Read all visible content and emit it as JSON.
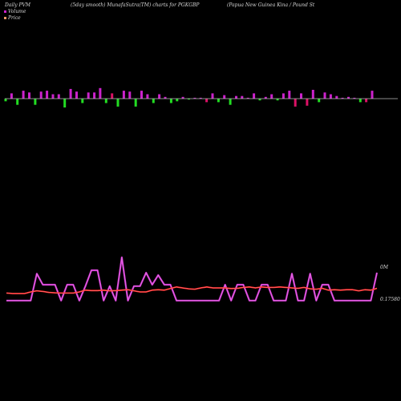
{
  "header": {
    "left": "Daily PVM",
    "middle": "(5day smooth) MunafaSutra(TM) charts for PGKGBP",
    "right": "(Papua  New  Guinea  Kina  /  Pound St"
  },
  "legend": [
    {
      "label": "Volume",
      "color": "#cc22cc"
    },
    {
      "label": "Price",
      "color": "#ee9966"
    }
  ],
  "colors": {
    "bar_up": "#cc22cc",
    "bar_up_alt": "#dd1166",
    "bar_down": "#22dd22",
    "baseline": "#bbbbbb",
    "volume_line": "#cc33cc",
    "price_line": "#ff2222",
    "price_thin": "#ff9999"
  },
  "chart_data": [
    {
      "type": "bar",
      "series": [
        {
          "name": "Volume",
          "values": [
            -3,
            6,
            -7,
            9,
            7,
            -7,
            8,
            9,
            5,
            5,
            -10,
            11,
            8,
            -5,
            7,
            7,
            12,
            -5,
            6,
            -9,
            9,
            8,
            -9,
            9,
            5,
            -5,
            5,
            2,
            -5,
            -3,
            2,
            -1,
            1,
            1,
            -4,
            6,
            -4,
            4,
            -7,
            3,
            3,
            1,
            6,
            -2,
            2,
            5,
            -2,
            6,
            9,
            -9,
            6,
            -8,
            10,
            -4,
            7,
            5,
            3,
            1,
            2,
            1,
            -4,
            -4,
            9
          ],
          "red": [
            false,
            false,
            false,
            false,
            false,
            false,
            false,
            false,
            false,
            false,
            false,
            false,
            false,
            false,
            false,
            false,
            false,
            false,
            true,
            false,
            false,
            false,
            false,
            false,
            false,
            false,
            false,
            false,
            false,
            false,
            false,
            false,
            false,
            false,
            true,
            false,
            false,
            false,
            false,
            false,
            false,
            false,
            false,
            false,
            false,
            false,
            false,
            false,
            false,
            true,
            false,
            true,
            false,
            false,
            false,
            false,
            false,
            false,
            false,
            false,
            false,
            true,
            false
          ]
        }
      ]
    },
    {
      "type": "line",
      "y_label_top": "0M",
      "y_label_price": "0.17580",
      "series": [
        {
          "name": "Volume",
          "values": [
            0.02,
            0.02,
            0.02,
            0.02,
            0.02,
            0.58,
            0.35,
            0.35,
            0.35,
            0.02,
            0.35,
            0.35,
            0.02,
            0.32,
            0.65,
            0.65,
            0.02,
            0.32,
            0.02,
            0.92,
            0.02,
            0.32,
            0.32,
            0.6,
            0.35,
            0.55,
            0.35,
            0.35,
            0.02,
            0.02,
            0.02,
            0.02,
            0.02,
            0.02,
            0.02,
            0.02,
            0.35,
            0.02,
            0.35,
            0.35,
            0.02,
            0.02,
            0.35,
            0.35,
            0.02,
            0.02,
            0.02,
            0.58,
            0.02,
            0.02,
            0.58,
            0.02,
            0.35,
            0.35,
            0.02,
            0.02,
            0.02,
            0.02,
            0.02,
            0.02,
            0.02,
            0.6
          ]
        },
        {
          "name": "Price",
          "values": [
            0.45,
            0.43,
            0.43,
            0.43,
            0.5,
            0.55,
            0.52,
            0.48,
            0.46,
            0.45,
            0.45,
            0.45,
            0.5,
            0.58,
            0.56,
            0.56,
            0.58,
            0.55,
            0.56,
            0.58,
            0.6,
            0.55,
            0.5,
            0.5,
            0.58,
            0.6,
            0.58,
            0.65,
            0.72,
            0.68,
            0.64,
            0.62,
            0.68,
            0.72,
            0.68,
            0.68,
            0.68,
            0.65,
            0.66,
            0.7,
            0.72,
            0.68,
            0.72,
            0.7,
            0.7,
            0.72,
            0.7,
            0.68,
            0.66,
            0.7,
            0.64,
            0.62,
            0.66,
            0.58,
            0.6,
            0.58,
            0.6,
            0.6,
            0.55,
            0.6,
            0.58,
            0.66
          ]
        }
      ]
    }
  ]
}
